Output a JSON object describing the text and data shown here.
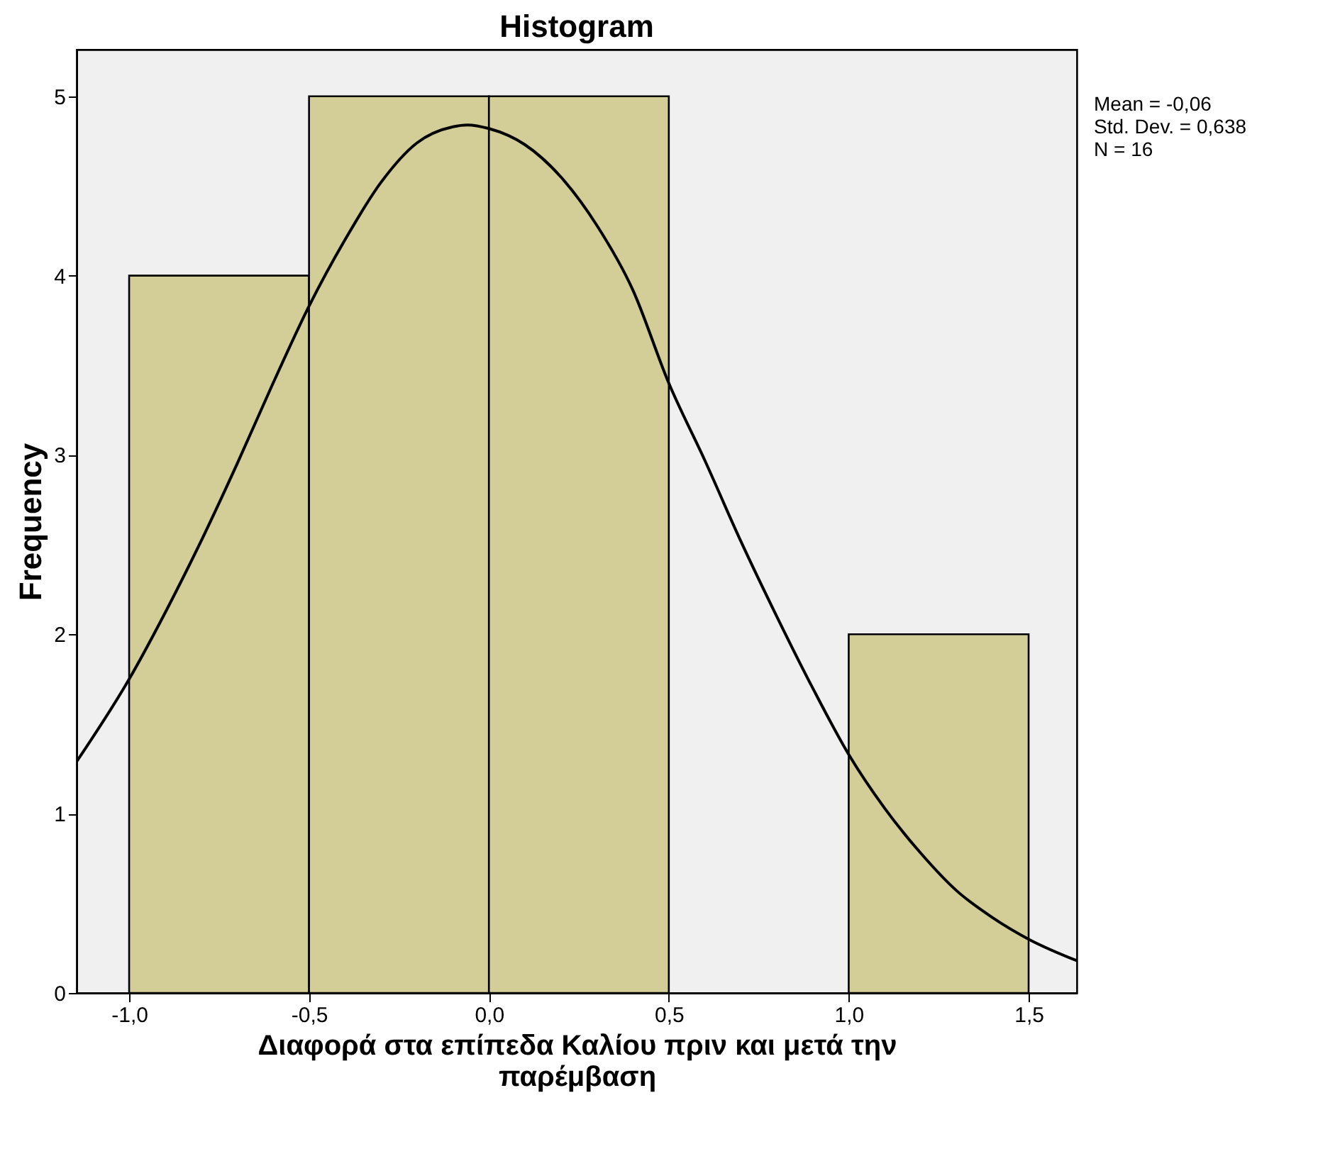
{
  "chart_data": {
    "type": "histogram",
    "title": "Histogram",
    "xlabel": "Διαφορά στα επίπεδα Καλίου πριν και μετά την παρέμβαση",
    "ylabel": "Frequency",
    "bins": [
      -1.0,
      -0.5,
      0.0,
      0.5,
      1.0,
      1.5
    ],
    "values": [
      4,
      5,
      5,
      0,
      2
    ],
    "color": "#d3ce98",
    "series": [
      {
        "type": "line",
        "color": "#000000",
        "x": [
          -1.146,
          -1.0,
          -0.9,
          -0.8,
          -0.7,
          -0.6,
          -0.5,
          -0.4,
          -0.3,
          -0.2,
          -0.1,
          -0.06,
          0.0,
          0.1,
          0.2,
          0.3,
          0.4,
          0.5,
          0.6,
          0.7,
          0.8,
          0.9,
          1.0,
          1.1,
          1.2,
          1.3,
          1.4,
          1.5,
          1.634
        ],
        "values": [
          1.29,
          1.75,
          2.12,
          2.52,
          2.95,
          3.4,
          3.83,
          4.2,
          4.52,
          4.74,
          4.83,
          4.84,
          4.82,
          4.73,
          4.55,
          4.28,
          3.92,
          3.4,
          2.97,
          2.52,
          2.1,
          1.7,
          1.33,
          1.03,
          0.78,
          0.57,
          0.42,
          0.3,
          0.18
        ]
      }
    ],
    "xlim": [
      -1.146,
      1.634
    ],
    "ylim": [
      0,
      5.26
    ],
    "xticks": [
      {
        "value": -1.0,
        "label": "-1,0"
      },
      {
        "value": -0.5,
        "label": "-0,5"
      },
      {
        "value": 0.0,
        "label": "0,0"
      },
      {
        "value": 0.5,
        "label": "0,5"
      },
      {
        "value": 1.0,
        "label": "1,0"
      },
      {
        "value": 1.5,
        "label": "1,5"
      }
    ],
    "yticks": [
      0,
      1,
      2,
      3,
      4,
      5
    ],
    "annotations": [
      "Mean = -0,06",
      "Std. Dev. = 0,638",
      "N = 16"
    ],
    "grid": false
  }
}
